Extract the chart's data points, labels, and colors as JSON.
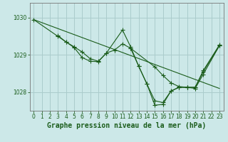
{
  "background_color": "#cce8e8",
  "grid_color": "#aacccc",
  "line_color": "#1a5c1a",
  "xlabel": "Graphe pression niveau de la mer (hPa)",
  "ylim": [
    1027.5,
    1030.4
  ],
  "xlim": [
    -0.5,
    23.5
  ],
  "yticks": [
    1028,
    1029,
    1030
  ],
  "xticks": [
    0,
    1,
    2,
    3,
    4,
    5,
    6,
    7,
    8,
    9,
    10,
    11,
    12,
    13,
    14,
    15,
    16,
    17,
    18,
    19,
    20,
    21,
    22,
    23
  ],
  "line1_x": [
    0,
    3,
    4,
    5,
    6,
    7,
    8,
    9,
    11,
    12,
    13,
    14,
    15,
    16,
    17,
    18,
    19,
    20,
    21,
    23
  ],
  "line1_y": [
    1029.95,
    1029.5,
    1029.35,
    1029.2,
    1028.93,
    1028.83,
    1028.82,
    1029.05,
    1029.67,
    1029.22,
    1028.7,
    1028.23,
    1027.77,
    1027.72,
    1028.03,
    1028.13,
    1028.13,
    1028.13,
    1028.58,
    1029.27
  ],
  "line2_x": [
    3,
    4,
    5,
    6,
    7,
    8,
    9,
    10,
    11,
    12,
    15,
    16,
    17,
    18,
    19,
    20,
    21,
    23
  ],
  "line2_y": [
    1029.52,
    1029.35,
    1029.22,
    1029.08,
    1028.9,
    1028.83,
    1029.05,
    1029.13,
    1029.3,
    1029.18,
    1028.68,
    1028.45,
    1028.25,
    1028.15,
    1028.13,
    1028.1,
    1028.48,
    1029.25
  ],
  "line3_x": [
    0,
    23
  ],
  "line3_y": [
    1029.95,
    1028.1
  ],
  "line4_x": [
    12,
    13,
    14,
    15,
    16,
    17,
    18,
    19,
    20,
    21,
    23
  ],
  "line4_y": [
    1029.18,
    1028.7,
    1028.23,
    1027.65,
    1027.67,
    1028.03,
    1028.13,
    1028.13,
    1028.13,
    1028.55,
    1029.25
  ],
  "marker_size": 2.5,
  "tick_fontsize": 5.5,
  "label_fontsize": 7.0
}
